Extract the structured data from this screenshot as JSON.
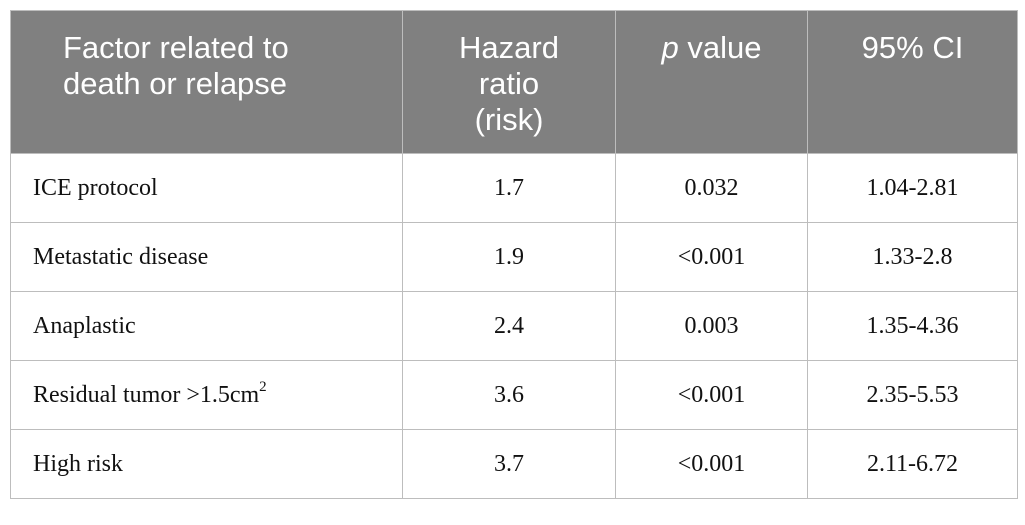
{
  "table": {
    "headers": {
      "factor_line1": "Factor related to",
      "factor_line2": "death or relapse",
      "hazard_line1": "Hazard",
      "hazard_line2": "ratio",
      "hazard_line3": "(risk)",
      "p_italic": "p",
      "p_rest": " value",
      "ci": "95% CI"
    },
    "rows": [
      {
        "factor": "ICE protocol",
        "factor_sup": "",
        "hazard": "1.7",
        "p": "0.032",
        "ci": "1.04-2.81"
      },
      {
        "factor": "Metastatic disease",
        "factor_sup": "",
        "hazard": "1.9",
        "p": "<0.001",
        "ci": "1.33-2.8"
      },
      {
        "factor": "Anaplastic",
        "factor_sup": "",
        "hazard": "2.4",
        "p": "0.003",
        "ci": "1.35-4.36"
      },
      {
        "factor": "Residual tumor >1.5cm",
        "factor_sup": "2",
        "hazard": "3.6",
        "p": "<0.001",
        "ci": "2.35-5.53"
      },
      {
        "factor": "High risk",
        "factor_sup": "",
        "hazard": "3.7",
        "p": "<0.001",
        "ci": "2.11-6.72"
      }
    ]
  }
}
